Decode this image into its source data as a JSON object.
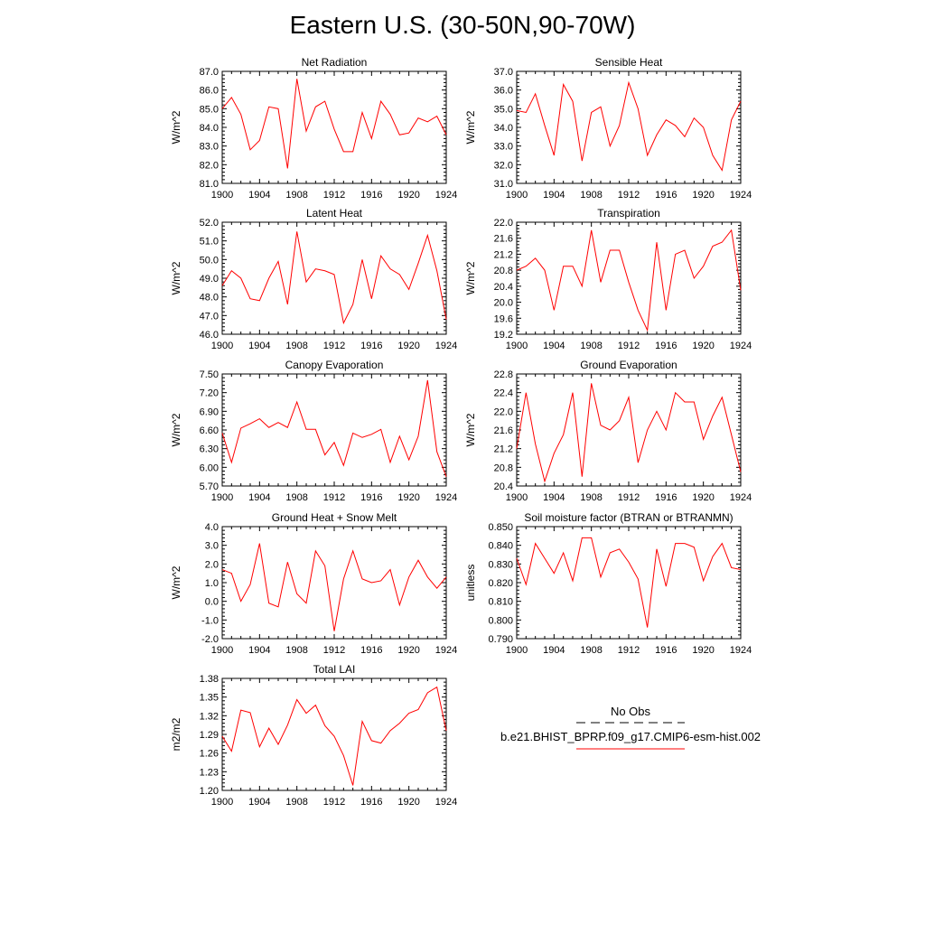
{
  "title": "Eastern U.S. (30-50N,90-70W)",
  "legend": {
    "entries": [
      {
        "label": "No Obs",
        "color": "#000000",
        "style": "dashed"
      },
      {
        "label": "b.e21.BHIST_BPRP.f09_g17.CMIP6-esm-hist.002",
        "color": "#ff0000",
        "style": "solid"
      }
    ]
  },
  "chart_data": [
    {
      "type": "line",
      "title": "Net Radiation",
      "ylabel": "W/m^2",
      "xlim": [
        1900,
        1924
      ],
      "ylim": [
        81.0,
        87.0
      ],
      "xticks": [
        "1900",
        "1904",
        "1908",
        "1912",
        "1916",
        "1920",
        "1924"
      ],
      "yticks": [
        "81.0",
        "82.0",
        "83.0",
        "84.0",
        "85.0",
        "86.0",
        "87.0"
      ],
      "series": [
        {
          "color": "#ff0000",
          "x": [
            1900,
            1901,
            1902,
            1903,
            1904,
            1905,
            1906,
            1907,
            1908,
            1909,
            1910,
            1911,
            1912,
            1913,
            1914,
            1915,
            1916,
            1917,
            1918,
            1919,
            1920,
            1921,
            1922,
            1923,
            1924
          ],
          "values": [
            85.0,
            85.6,
            84.7,
            82.8,
            83.3,
            85.1,
            85.0,
            81.8,
            86.6,
            83.8,
            85.1,
            85.4,
            83.9,
            82.7,
            82.7,
            84.8,
            83.4,
            85.4,
            84.7,
            83.6,
            83.7,
            84.5,
            84.3,
            84.6,
            83.6
          ]
        }
      ]
    },
    {
      "type": "line",
      "title": "Sensible Heat",
      "ylabel": "W/m^2",
      "xlim": [
        1900,
        1924
      ],
      "ylim": [
        31.0,
        37.0
      ],
      "xticks": [
        "1900",
        "1904",
        "1908",
        "1912",
        "1916",
        "1920",
        "1924"
      ],
      "yticks": [
        "31.0",
        "32.0",
        "33.0",
        "34.0",
        "35.0",
        "36.0",
        "37.0"
      ],
      "series": [
        {
          "color": "#ff0000",
          "x": [
            1900,
            1901,
            1902,
            1903,
            1904,
            1905,
            1906,
            1907,
            1908,
            1909,
            1910,
            1911,
            1912,
            1913,
            1914,
            1915,
            1916,
            1917,
            1918,
            1919,
            1920,
            1921,
            1922,
            1923,
            1924
          ],
          "values": [
            34.9,
            34.8,
            35.8,
            34.1,
            32.5,
            36.3,
            35.4,
            32.2,
            34.8,
            35.1,
            33.0,
            34.1,
            36.4,
            35.0,
            32.5,
            33.6,
            34.4,
            34.1,
            33.5,
            34.5,
            34.0,
            32.5,
            31.7,
            34.4,
            35.4
          ]
        }
      ]
    },
    {
      "type": "line",
      "title": "Latent Heat",
      "ylabel": "W/m^2",
      "xlim": [
        1900,
        1924
      ],
      "ylim": [
        46.0,
        52.0
      ],
      "xticks": [
        "1900",
        "1904",
        "1908",
        "1912",
        "1916",
        "1920",
        "1924"
      ],
      "yticks": [
        "46.0",
        "47.0",
        "48.0",
        "49.0",
        "50.0",
        "51.0",
        "52.0"
      ],
      "series": [
        {
          "color": "#ff0000",
          "x": [
            1900,
            1901,
            1902,
            1903,
            1904,
            1905,
            1906,
            1907,
            1908,
            1909,
            1910,
            1911,
            1912,
            1913,
            1914,
            1915,
            1916,
            1917,
            1918,
            1919,
            1920,
            1921,
            1922,
            1923,
            1924
          ],
          "values": [
            48.6,
            49.4,
            49.0,
            47.9,
            47.8,
            49.0,
            49.9,
            47.6,
            51.5,
            48.8,
            49.5,
            49.4,
            49.2,
            46.6,
            47.6,
            50.0,
            47.9,
            50.2,
            49.5,
            49.2,
            48.4,
            49.8,
            51.3,
            49.4,
            46.8
          ]
        }
      ]
    },
    {
      "type": "line",
      "title": "Transpiration",
      "ylabel": "W/m^2",
      "xlim": [
        1900,
        1924
      ],
      "ylim": [
        19.2,
        22.0
      ],
      "xticks": [
        "1900",
        "1904",
        "1908",
        "1912",
        "1916",
        "1920",
        "1924"
      ],
      "yticks": [
        "19.2",
        "19.6",
        "20.0",
        "20.4",
        "20.8",
        "21.2",
        "21.6",
        "22.0"
      ],
      "series": [
        {
          "color": "#ff0000",
          "x": [
            1900,
            1901,
            1902,
            1903,
            1904,
            1905,
            1906,
            1907,
            1908,
            1909,
            1910,
            1911,
            1912,
            1913,
            1914,
            1915,
            1916,
            1917,
            1918,
            1919,
            1920,
            1921,
            1922,
            1923,
            1924
          ],
          "values": [
            20.8,
            20.9,
            21.1,
            20.8,
            19.8,
            20.9,
            20.9,
            20.4,
            21.8,
            20.5,
            21.3,
            21.3,
            20.5,
            19.8,
            19.3,
            21.5,
            19.8,
            21.2,
            21.3,
            20.6,
            20.9,
            21.4,
            21.5,
            21.8,
            20.3
          ]
        }
      ]
    },
    {
      "type": "line",
      "title": "Canopy Evaporation",
      "ylabel": "W/m^2",
      "xlim": [
        1900,
        1924
      ],
      "ylim": [
        5.7,
        7.5
      ],
      "xticks": [
        "1900",
        "1904",
        "1908",
        "1912",
        "1916",
        "1920",
        "1924"
      ],
      "yticks": [
        "5.70",
        "6.00",
        "6.30",
        "6.60",
        "6.90",
        "7.20",
        "7.50"
      ],
      "series": [
        {
          "color": "#ff0000",
          "x": [
            1900,
            1901,
            1902,
            1903,
            1904,
            1905,
            1906,
            1907,
            1908,
            1909,
            1910,
            1911,
            1912,
            1913,
            1914,
            1915,
            1916,
            1917,
            1918,
            1919,
            1920,
            1921,
            1922,
            1923,
            1924
          ],
          "values": [
            6.55,
            6.08,
            6.63,
            6.7,
            6.78,
            6.64,
            6.72,
            6.64,
            7.05,
            6.61,
            6.61,
            6.2,
            6.4,
            6.03,
            6.55,
            6.48,
            6.53,
            6.61,
            6.08,
            6.5,
            6.12,
            6.5,
            7.4,
            6.25,
            5.85
          ]
        }
      ]
    },
    {
      "type": "line",
      "title": "Ground Evaporation",
      "ylabel": "W/m^2",
      "xlim": [
        1900,
        1924
      ],
      "ylim": [
        20.4,
        22.8
      ],
      "xticks": [
        "1900",
        "1904",
        "1908",
        "1912",
        "1916",
        "1920",
        "1924"
      ],
      "yticks": [
        "20.4",
        "20.8",
        "21.2",
        "21.6",
        "22.0",
        "22.4",
        "22.8"
      ],
      "series": [
        {
          "color": "#ff0000",
          "x": [
            1900,
            1901,
            1902,
            1903,
            1904,
            1905,
            1906,
            1907,
            1908,
            1909,
            1910,
            1911,
            1912,
            1913,
            1914,
            1915,
            1916,
            1917,
            1918,
            1919,
            1920,
            1921,
            1922,
            1923,
            1924
          ],
          "values": [
            21.2,
            22.4,
            21.3,
            20.5,
            21.1,
            21.5,
            22.4,
            20.6,
            22.6,
            21.7,
            21.6,
            21.8,
            22.3,
            20.9,
            21.6,
            22.0,
            21.6,
            22.4,
            22.2,
            22.2,
            21.4,
            21.9,
            22.3,
            21.5,
            20.7
          ]
        }
      ]
    },
    {
      "type": "line",
      "title": "Ground Heat + Snow Melt",
      "ylabel": "W/m^2",
      "xlim": [
        1900,
        1924
      ],
      "ylim": [
        -2.0,
        4.0
      ],
      "xticks": [
        "1900",
        "1904",
        "1908",
        "1912",
        "1916",
        "1920",
        "1924"
      ],
      "yticks": [
        "-2.0",
        "-1.0",
        "0.0",
        "1.0",
        "2.0",
        "3.0",
        "4.0"
      ],
      "series": [
        {
          "color": "#ff0000",
          "x": [
            1900,
            1901,
            1902,
            1903,
            1904,
            1905,
            1906,
            1907,
            1908,
            1909,
            1910,
            1911,
            1912,
            1913,
            1914,
            1915,
            1916,
            1917,
            1918,
            1919,
            1920,
            1921,
            1922,
            1923,
            1924
          ],
          "values": [
            1.7,
            1.5,
            0.0,
            0.9,
            3.1,
            -0.1,
            -0.3,
            2.1,
            0.4,
            -0.1,
            2.7,
            1.9,
            -1.6,
            1.2,
            2.7,
            1.2,
            1.0,
            1.1,
            1.7,
            -0.2,
            1.3,
            2.2,
            1.3,
            0.7,
            1.3
          ]
        }
      ]
    },
    {
      "type": "line",
      "title": "Soil moisture factor (BTRAN or BTRANMN)",
      "ylabel": "unitless",
      "xlim": [
        1900,
        1924
      ],
      "ylim": [
        0.79,
        0.85
      ],
      "xticks": [
        "1900",
        "1904",
        "1908",
        "1912",
        "1916",
        "1920",
        "1924"
      ],
      "yticks": [
        "0.790",
        "0.800",
        "0.810",
        "0.820",
        "0.830",
        "0.840",
        "0.850"
      ],
      "series": [
        {
          "color": "#ff0000",
          "x": [
            1900,
            1901,
            1902,
            1903,
            1904,
            1905,
            1906,
            1907,
            1908,
            1909,
            1910,
            1911,
            1912,
            1913,
            1914,
            1915,
            1916,
            1917,
            1918,
            1919,
            1920,
            1921,
            1922,
            1923,
            1924
          ],
          "values": [
            0.833,
            0.819,
            0.841,
            0.833,
            0.825,
            0.836,
            0.821,
            0.844,
            0.844,
            0.823,
            0.836,
            0.838,
            0.831,
            0.822,
            0.796,
            0.838,
            0.818,
            0.841,
            0.841,
            0.839,
            0.821,
            0.834,
            0.841,
            0.828,
            0.827
          ]
        }
      ]
    },
    {
      "type": "line",
      "title": "Total LAI",
      "ylabel": "m2/m2",
      "xlim": [
        1900,
        1924
      ],
      "ylim": [
        1.2,
        1.38
      ],
      "xticks": [
        "1900",
        "1904",
        "1908",
        "1912",
        "1916",
        "1920",
        "1924"
      ],
      "yticks": [
        "1.20",
        "1.23",
        "1.26",
        "1.29",
        "1.32",
        "1.35",
        "1.38"
      ],
      "series": [
        {
          "color": "#ff0000",
          "x": [
            1900,
            1901,
            1902,
            1903,
            1904,
            1905,
            1906,
            1907,
            1908,
            1909,
            1910,
            1911,
            1912,
            1913,
            1914,
            1915,
            1916,
            1917,
            1918,
            1919,
            1920,
            1921,
            1922,
            1923,
            1924
          ],
          "values": [
            1.287,
            1.263,
            1.329,
            1.325,
            1.27,
            1.3,
            1.274,
            1.305,
            1.346,
            1.324,
            1.337,
            1.304,
            1.287,
            1.256,
            1.208,
            1.311,
            1.28,
            1.276,
            1.296,
            1.308,
            1.324,
            1.33,
            1.357,
            1.366,
            1.296
          ]
        }
      ]
    }
  ]
}
